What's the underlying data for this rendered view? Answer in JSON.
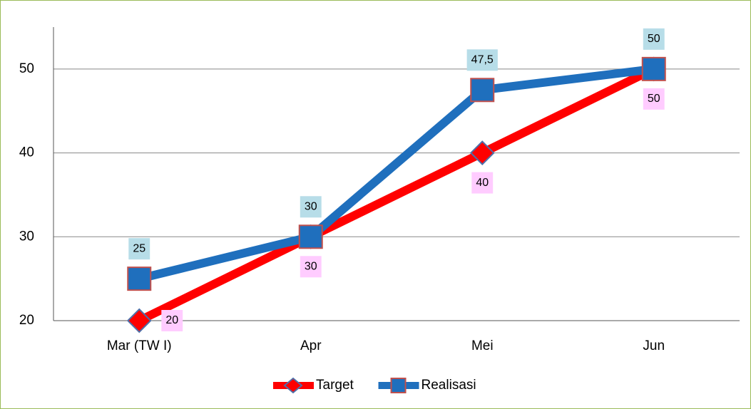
{
  "chart_data": {
    "type": "line",
    "categories": [
      "Mar (TW I)",
      "Apr",
      "Mei",
      "Jun"
    ],
    "series": [
      {
        "name": "Target",
        "color": "#ff0000",
        "values": [
          20,
          30,
          40,
          50
        ]
      },
      {
        "name": "Realisasi",
        "color": "#1f6fbd",
        "values": [
          25,
          30,
          47.5,
          50
        ],
        "value_labels": [
          "25",
          "30",
          "47,5",
          "50"
        ]
      }
    ],
    "ylim": [
      20,
      55
    ],
    "yticks": [
      20,
      30,
      40,
      50
    ],
    "grid": true,
    "legend": "bottom"
  }
}
